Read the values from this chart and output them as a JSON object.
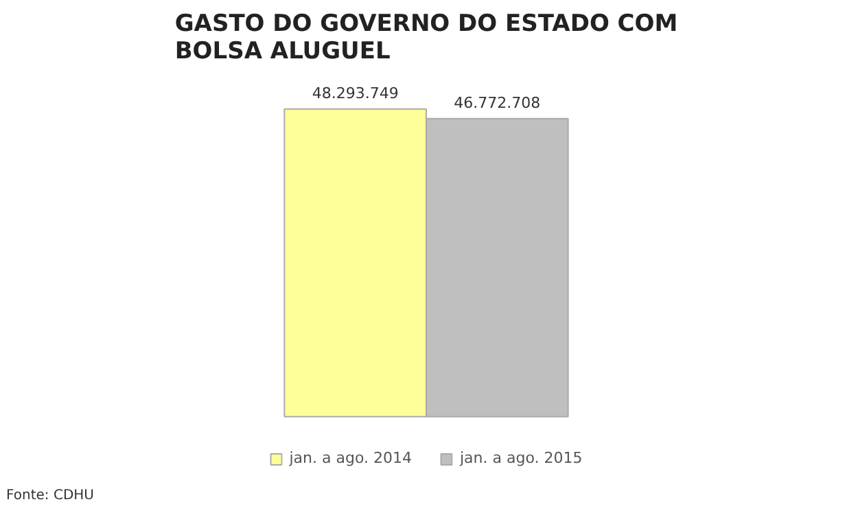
{
  "chart_data": {
    "type": "bar",
    "title": "GASTO DO GOVERNO DO ESTADO COM BOLSA ALUGUEL",
    "categories": [
      null
    ],
    "series": [
      {
        "name": "jan. a ago. 2014",
        "color": "#ffff99",
        "values": [
          48293749
        ],
        "value_labels": [
          "48.293.749"
        ]
      },
      {
        "name": "jan. a ago. 2015",
        "color": "#bfbfbf",
        "values": [
          46772708
        ],
        "value_labels": [
          "46.772.708"
        ]
      }
    ],
    "legend": "bottom",
    "tick_labels": false,
    "annotations": [
      "Fonte: CDHU"
    ]
  }
}
